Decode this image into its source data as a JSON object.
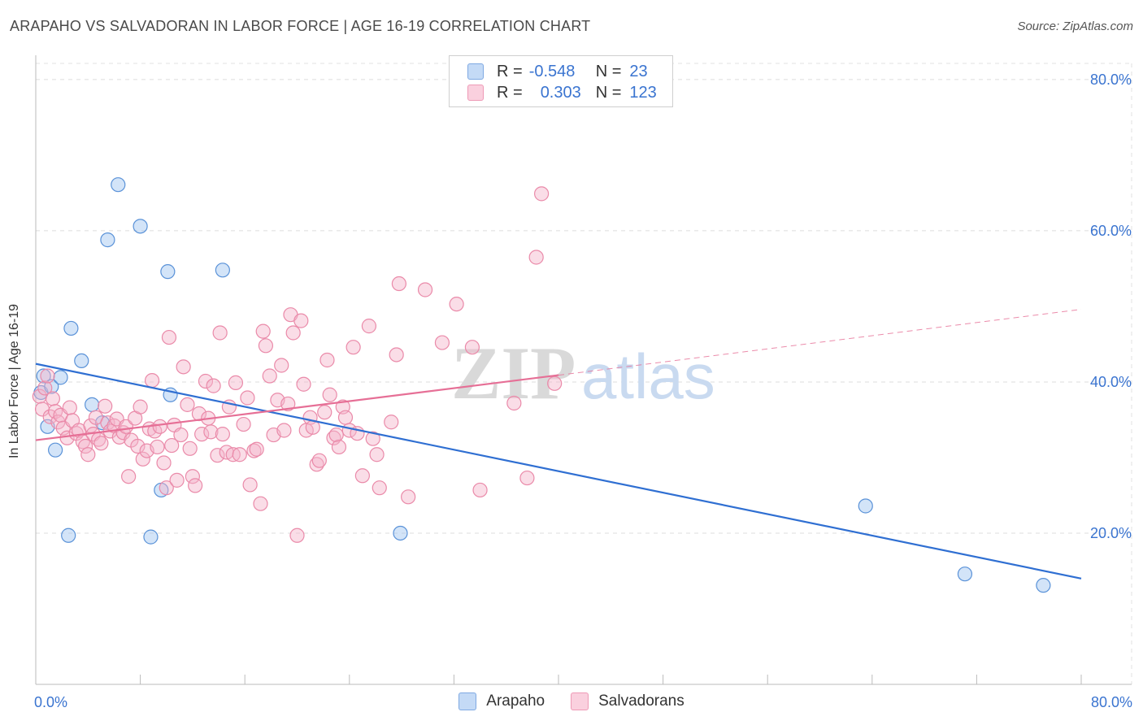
{
  "header": {
    "title": "ARAPAHO VS SALVADORAN IN LABOR FORCE | AGE 16-19 CORRELATION CHART",
    "source": "Source: ZipAtlas.com"
  },
  "legend": {
    "rows": [
      {
        "r_label": "R =",
        "r_value": "-0.548",
        "n_label": "N =",
        "n_value": "23",
        "color": "#9ec4f0"
      },
      {
        "r_label": "R =",
        "r_value": "0.303",
        "n_label": "N =",
        "n_value": "123",
        "color": "#f5b3c9"
      }
    ]
  },
  "bottom_legend": [
    {
      "label": "Arapaho",
      "color": "#9ec4f0"
    },
    {
      "label": "Salvadorans",
      "color": "#f5b3c9"
    }
  ],
  "chart_data": {
    "type": "scatter",
    "title": "ARAPAHO VS SALVADORAN IN LABOR FORCE | AGE 16-19 CORRELATION CHART",
    "xlabel": "",
    "ylabel": "In Labor Force | Age 16-19",
    "xlim": [
      0,
      80
    ],
    "ylim": [
      0,
      83
    ],
    "x_tick_labels": [
      "0.0%",
      "80.0%"
    ],
    "y_ticks": [
      20,
      40,
      60,
      80
    ],
    "y_tick_labels": [
      "20.0%",
      "40.0%",
      "60.0%",
      "80.0%"
    ],
    "grid": true,
    "watermark": {
      "part1": "ZIP",
      "part2": "atlas"
    },
    "series": [
      {
        "name": "Arapaho",
        "color": "#9ec4f0",
        "stroke": "#5a92d8",
        "line_color": "#2f6fd2",
        "trend": {
          "x0": 0,
          "y0": 42.4,
          "x1": 80,
          "y1": 14.0
        },
        "points": [
          [
            0.4,
            38.6
          ],
          [
            0.6,
            40.8
          ],
          [
            0.9,
            34.1
          ],
          [
            1.2,
            39.4
          ],
          [
            1.5,
            31.0
          ],
          [
            1.9,
            40.6
          ],
          [
            2.5,
            19.7
          ],
          [
            2.7,
            47.1
          ],
          [
            3.5,
            42.8
          ],
          [
            4.3,
            37.0
          ],
          [
            5.1,
            34.6
          ],
          [
            5.5,
            58.8
          ],
          [
            6.3,
            66.1
          ],
          [
            8.0,
            60.6
          ],
          [
            8.8,
            19.5
          ],
          [
            9.6,
            25.7
          ],
          [
            10.1,
            54.6
          ],
          [
            10.3,
            38.3
          ],
          [
            14.3,
            54.8
          ],
          [
            27.9,
            20.0
          ],
          [
            63.5,
            23.6
          ],
          [
            71.1,
            14.6
          ],
          [
            77.1,
            13.1
          ]
        ]
      },
      {
        "name": "Salvadorans",
        "color": "#f5b3c9",
        "stroke": "#ea8aa9",
        "line_color": "#e66f96",
        "trend": {
          "x0": 0,
          "y0": 32.3,
          "x1": 40,
          "y1": 40.9
        },
        "trend_ext": {
          "x0": 40,
          "y0": 40.9,
          "x1": 80,
          "y1": 49.6
        },
        "points": [
          [
            0.3,
            38.1
          ],
          [
            0.5,
            36.4
          ],
          [
            0.7,
            39.2
          ],
          [
            0.9,
            40.8
          ],
          [
            1.1,
            35.4
          ],
          [
            1.3,
            37.8
          ],
          [
            1.5,
            36.1
          ],
          [
            1.7,
            34.7
          ],
          [
            1.9,
            35.6
          ],
          [
            2.1,
            33.9
          ],
          [
            2.4,
            32.6
          ],
          [
            2.6,
            36.6
          ],
          [
            2.8,
            34.9
          ],
          [
            3.1,
            33.2
          ],
          [
            3.3,
            33.6
          ],
          [
            3.6,
            32.1
          ],
          [
            3.8,
            31.5
          ],
          [
            4.0,
            30.4
          ],
          [
            4.2,
            34.2
          ],
          [
            4.4,
            33.1
          ],
          [
            4.6,
            35.3
          ],
          [
            4.8,
            32.4
          ],
          [
            5.0,
            31.9
          ],
          [
            5.3,
            36.8
          ],
          [
            5.5,
            34.6
          ],
          [
            5.7,
            33.5
          ],
          [
            6.0,
            34.2
          ],
          [
            6.2,
            35.1
          ],
          [
            6.4,
            32.7
          ],
          [
            6.7,
            33.3
          ],
          [
            6.9,
            34.1
          ],
          [
            7.1,
            27.5
          ],
          [
            7.3,
            32.3
          ],
          [
            7.6,
            35.2
          ],
          [
            7.8,
            31.5
          ],
          [
            8.0,
            36.7
          ],
          [
            8.2,
            29.8
          ],
          [
            8.5,
            30.9
          ],
          [
            8.7,
            33.8
          ],
          [
            8.9,
            40.2
          ],
          [
            9.1,
            33.5
          ],
          [
            9.3,
            31.4
          ],
          [
            9.5,
            34.1
          ],
          [
            9.8,
            29.3
          ],
          [
            10.0,
            26.0
          ],
          [
            10.2,
            45.9
          ],
          [
            10.4,
            31.6
          ],
          [
            10.6,
            34.3
          ],
          [
            10.8,
            27.0
          ],
          [
            11.1,
            33.0
          ],
          [
            11.3,
            42.0
          ],
          [
            11.6,
            37.0
          ],
          [
            11.8,
            31.2
          ],
          [
            12.0,
            27.5
          ],
          [
            12.2,
            26.3
          ],
          [
            12.5,
            35.8
          ],
          [
            12.7,
            33.1
          ],
          [
            13.0,
            40.1
          ],
          [
            13.2,
            35.2
          ],
          [
            13.4,
            33.4
          ],
          [
            13.6,
            39.5
          ],
          [
            13.9,
            30.3
          ],
          [
            14.1,
            46.5
          ],
          [
            14.3,
            33.1
          ],
          [
            14.6,
            30.7
          ],
          [
            14.8,
            36.7
          ],
          [
            15.1,
            30.4
          ],
          [
            15.3,
            39.9
          ],
          [
            15.6,
            30.4
          ],
          [
            15.9,
            34.4
          ],
          [
            16.2,
            37.9
          ],
          [
            16.4,
            26.4
          ],
          [
            16.7,
            30.9
          ],
          [
            16.9,
            31.1
          ],
          [
            17.2,
            23.9
          ],
          [
            17.4,
            46.7
          ],
          [
            17.6,
            44.8
          ],
          [
            17.9,
            40.8
          ],
          [
            18.2,
            33.0
          ],
          [
            18.5,
            37.6
          ],
          [
            18.8,
            42.2
          ],
          [
            19.0,
            33.6
          ],
          [
            19.3,
            37.1
          ],
          [
            19.5,
            48.9
          ],
          [
            19.7,
            46.5
          ],
          [
            20.0,
            19.7
          ],
          [
            20.3,
            48.1
          ],
          [
            20.5,
            39.7
          ],
          [
            20.7,
            33.6
          ],
          [
            21.0,
            35.3
          ],
          [
            21.2,
            34.0
          ],
          [
            21.5,
            29.1
          ],
          [
            21.7,
            29.6
          ],
          [
            22.1,
            36.0
          ],
          [
            22.3,
            42.9
          ],
          [
            22.5,
            38.3
          ],
          [
            22.8,
            32.6
          ],
          [
            23.0,
            33.0
          ],
          [
            23.2,
            31.4
          ],
          [
            23.5,
            36.7
          ],
          [
            23.7,
            35.3
          ],
          [
            24.0,
            33.6
          ],
          [
            24.3,
            44.6
          ],
          [
            24.6,
            33.2
          ],
          [
            25.0,
            27.6
          ],
          [
            25.5,
            47.4
          ],
          [
            25.8,
            32.5
          ],
          [
            26.1,
            30.4
          ],
          [
            26.3,
            26.0
          ],
          [
            27.2,
            34.7
          ],
          [
            27.6,
            43.6
          ],
          [
            27.8,
            53.0
          ],
          [
            28.5,
            24.8
          ],
          [
            29.8,
            52.2
          ],
          [
            31.1,
            45.2
          ],
          [
            32.2,
            50.3
          ],
          [
            33.4,
            44.6
          ],
          [
            34.0,
            25.7
          ],
          [
            36.6,
            37.2
          ],
          [
            37.6,
            27.3
          ],
          [
            38.3,
            56.5
          ],
          [
            38.7,
            64.9
          ],
          [
            39.7,
            39.8
          ]
        ]
      }
    ]
  }
}
